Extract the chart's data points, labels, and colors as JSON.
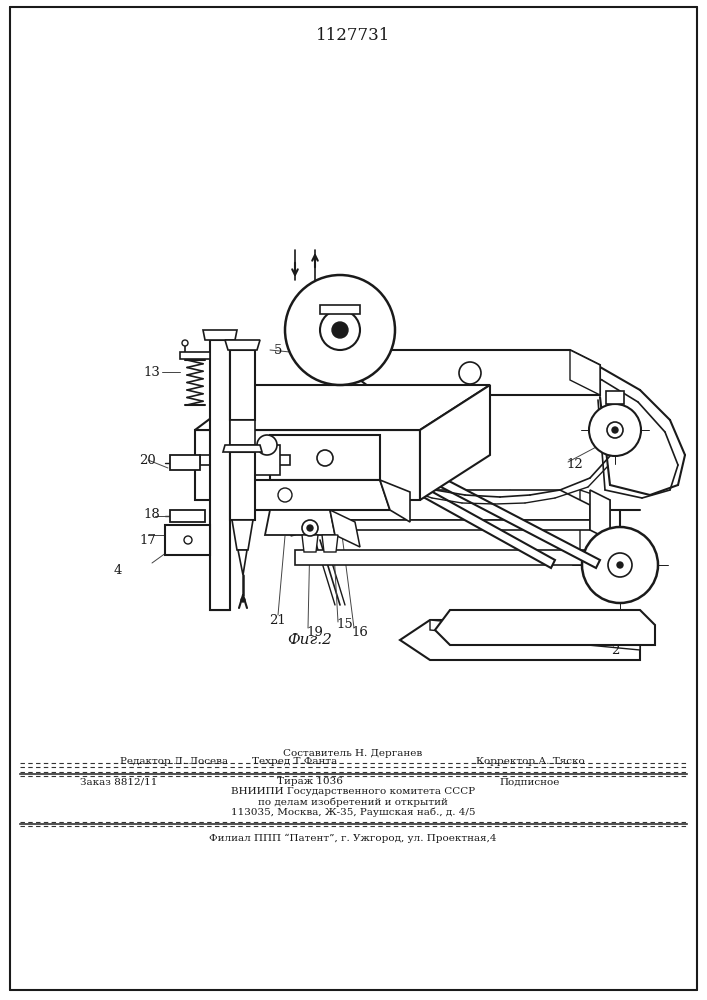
{
  "patent_number": "1127731",
  "figure_label": "Фиг.2",
  "background_color": "#ffffff",
  "footer_lines": [
    "Составитель Н. Дерганев",
    "Редактор Л. Лосева",
    "Техред Т.Фанта",
    "Корректор А. Тяско",
    "Заказ 8812/11",
    "Тираж 1036",
    "Подписное",
    "ВНИИПИ Государственного комитета СССР",
    "по делам изобретений и открытий",
    "113035, Москва, Ж-35, Раушская наб., д. 4/5",
    "Филиал ППП “Патент”, г. Ужгород, ул. Проектная,4"
  ],
  "lc": "#1a1a1a"
}
